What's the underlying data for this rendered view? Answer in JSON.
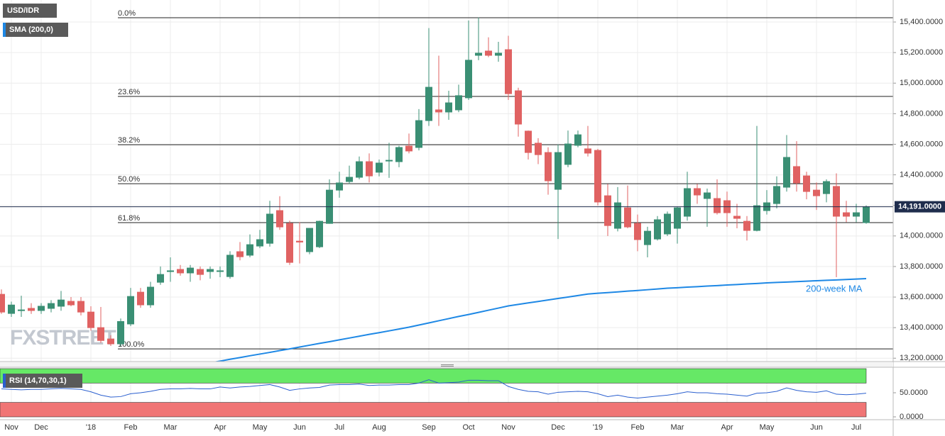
{
  "chart_data": [
    {
      "type": "candlestick",
      "title": "USD/IDR",
      "watermark": "FXSTREET",
      "up_color": "#3a8f74",
      "down_color": "#e06262",
      "categories": [
        null,
        "Nov",
        null,
        null,
        "Dec",
        null,
        null,
        null,
        null,
        "'18",
        null,
        null,
        null,
        "Feb",
        null,
        null,
        null,
        "Mar",
        null,
        null,
        null,
        null,
        "Apr",
        null,
        null,
        null,
        "May",
        null,
        null,
        null,
        "Jun",
        null,
        null,
        null,
        "Jul",
        null,
        null,
        null,
        "Aug",
        null,
        null,
        null,
        null,
        "Sep",
        null,
        null,
        null,
        "Oct",
        null,
        null,
        null,
        "Nov",
        null,
        null,
        null,
        null,
        "Dec",
        null,
        null,
        null,
        "'19",
        null,
        null,
        null,
        "Feb",
        null,
        null,
        null,
        "Mar",
        null,
        null,
        null,
        null,
        "Apr",
        null,
        null,
        null,
        "May",
        null,
        null,
        null,
        null,
        "Jun",
        null,
        null,
        null,
        "Jul",
        null
      ],
      "open": [
        13618,
        13493,
        13516,
        13526,
        13512,
        13526,
        13540,
        13572,
        13572,
        13502,
        13400,
        13326,
        13294,
        13424,
        13632,
        13549,
        13697,
        13767,
        13781,
        13758,
        13781,
        13767,
        13772,
        13734,
        13897,
        13874,
        13934,
        13952,
        14166,
        14082,
        13966,
        13897,
        13929,
        14082,
        14300,
        14356,
        14384,
        14486,
        14417,
        14495,
        14486,
        14588,
        14579,
        14755,
        14825,
        14811,
        14825,
        14904,
        15182,
        15210,
        15182,
        15219,
        14950,
        14686,
        14607,
        14546,
        14305,
        14468,
        14593,
        14570,
        14560,
        14263,
        14050,
        14184,
        14082,
        13943,
        13980,
        14013,
        14050,
        14129,
        14310,
        14245,
        14245,
        14231,
        14129,
        14096,
        14036,
        14166,
        14212,
        14319,
        14454,
        14393,
        14300,
        14277,
        14324,
        14152,
        14129,
        14087
      ],
      "high": [
        13650,
        13570,
        13609,
        13560,
        13560,
        13580,
        13640,
        13600,
        13600,
        13540,
        13535,
        13350,
        13460,
        13660,
        13660,
        13700,
        13800,
        13860,
        13810,
        13810,
        13800,
        13800,
        13800,
        13900,
        13960,
        14010,
        14040,
        14230,
        14260,
        14100,
        14090,
        14050,
        14100,
        14370,
        14420,
        14460,
        14520,
        14540,
        14500,
        14610,
        14590,
        14670,
        14830,
        15360,
        15180,
        14950,
        14990,
        15410,
        15430,
        15300,
        15270,
        15310,
        14970,
        14690,
        14640,
        14580,
        14600,
        14690,
        14690,
        14720,
        14570,
        14340,
        14320,
        14330,
        14140,
        14060,
        14130,
        14160,
        14190,
        14420,
        14340,
        14310,
        14370,
        14290,
        14210,
        14130,
        14720,
        14300,
        14390,
        14660,
        14620,
        14420,
        14350,
        14370,
        14410,
        14230,
        14210,
        14200
      ],
      "low": [
        13490,
        13470,
        13470,
        13490,
        13490,
        13500,
        13510,
        13540,
        13480,
        13380,
        13300,
        13280,
        13280,
        13410,
        13530,
        13530,
        13680,
        13700,
        13740,
        13700,
        13710,
        13720,
        13730,
        13720,
        13840,
        13860,
        13920,
        13930,
        14040,
        13810,
        13820,
        13880,
        13920,
        14080,
        14250,
        14340,
        14370,
        14350,
        14390,
        14380,
        14450,
        14540,
        14560,
        14720,
        14720,
        14760,
        14810,
        14890,
        15150,
        15170,
        15140,
        14890,
        14650,
        14500,
        14470,
        14270,
        13980,
        14450,
        14580,
        14520,
        14200,
        14000,
        14030,
        14050,
        13900,
        13860,
        13970,
        14000,
        13950,
        14100,
        14210,
        14060,
        14140,
        14060,
        14050,
        13970,
        14030,
        14140,
        14180,
        14290,
        14290,
        14240,
        14170,
        14220,
        13730,
        14090,
        14090,
        14080
      ],
      "close": [
        13502,
        13548,
        13516,
        13512,
        13540,
        13558,
        13581,
        13549,
        13502,
        13400,
        13316,
        13294,
        13440,
        13604,
        13549,
        13665,
        13748,
        13772,
        13758,
        13790,
        13748,
        13781,
        13772,
        13874,
        13864,
        13943,
        13976,
        14143,
        14059,
        13827,
        13960,
        14050,
        14096,
        14300,
        14347,
        14384,
        14486,
        14393,
        14477,
        14495,
        14579,
        14556,
        14755,
        14973,
        14811,
        14871,
        14918,
        15150,
        15196,
        15182,
        15196,
        14931,
        14732,
        14546,
        14532,
        14361,
        14546,
        14602,
        14662,
        14542,
        14222,
        14068,
        14217,
        14059,
        13976,
        14031,
        14106,
        14143,
        14184,
        14310,
        14268,
        14282,
        14152,
        14152,
        14115,
        14036,
        14198,
        14217,
        14324,
        14514,
        14347,
        14291,
        14263,
        14356,
        14129,
        14129,
        14152,
        14191
      ],
      "overlays": [
        {
          "name": "SMA (200,0)",
          "color": "#1e88e5",
          "values": [
            null,
            null,
            null,
            null,
            null,
            null,
            null,
            null,
            null,
            null,
            null,
            null,
            null,
            null,
            null,
            null,
            null,
            null,
            null,
            null,
            null,
            13170,
            13181,
            13193,
            13204,
            13216,
            13227,
            13238,
            13250,
            13261,
            13273,
            13285,
            13297,
            13308,
            13320,
            13332,
            13344,
            13356,
            13367,
            13379,
            13391,
            13403,
            13417,
            13431,
            13445,
            13459,
            13473,
            13486,
            13500,
            13514,
            13528,
            13542,
            13552,
            13562,
            13571,
            13581,
            13591,
            13600,
            13610,
            13620,
            13625,
            13629,
            13634,
            13639,
            13643,
            13648,
            13653,
            13658,
            13661,
            13665,
            13668,
            13672,
            13675,
            13679,
            13682,
            13686,
            13689,
            13693,
            13696,
            13698,
            13701,
            13704,
            13707,
            13710,
            13712,
            13715,
            13718,
            13721
          ]
        }
      ],
      "annotations": [
        "200-week MA"
      ],
      "fib_levels": [
        {
          "value": 15428,
          "label": "0.0%"
        },
        {
          "value": 14913,
          "label": "23.6%"
        },
        {
          "value": 14597,
          "label": "38.2%"
        },
        {
          "value": 14342,
          "label": "50.0%"
        },
        {
          "value": 14087,
          "label": "61.8%"
        },
        {
          "value": 13261,
          "label": "100.0%"
        }
      ],
      "last_price": {
        "value": 14191,
        "label": "14,191.0000"
      },
      "ylim": [
        13178,
        15544
      ],
      "yticks": [
        {
          "value": 15400,
          "label": "15,400.0000"
        },
        {
          "value": 15200,
          "label": "15,200.0000"
        },
        {
          "value": 15000,
          "label": "15,000.0000"
        },
        {
          "value": 14800,
          "label": "14,800.0000"
        },
        {
          "value": 14600,
          "label": "14,600.0000"
        },
        {
          "value": 14400,
          "label": "14,400.0000"
        },
        {
          "value": 14200,
          "label": "14,200.0000"
        },
        {
          "value": 14000,
          "label": "14,000.0000"
        },
        {
          "value": 13800,
          "label": "13,800.0000"
        },
        {
          "value": 13600,
          "label": "13,600.0000"
        },
        {
          "value": 13400,
          "label": "13,400.0000"
        },
        {
          "value": 13200,
          "label": "13,200.0000"
        }
      ],
      "grid": true
    },
    {
      "type": "line",
      "title": "RSI (14,70,30,1)",
      "color": "#2a5fcf",
      "bands": [
        {
          "from": 70,
          "to": 100,
          "color": "#66e866"
        },
        {
          "from": 0,
          "to": 30,
          "color": "#f07575"
        }
      ],
      "values": [
        58,
        57,
        56,
        57,
        57,
        58,
        59,
        58,
        57,
        52,
        45,
        41,
        42,
        48,
        50,
        53,
        57,
        58,
        58,
        59,
        58,
        58,
        62,
        60,
        62,
        63,
        65,
        67,
        62,
        55,
        58,
        60,
        61,
        66,
        67,
        67,
        68,
        65,
        66,
        66,
        67,
        67,
        70,
        77,
        70,
        71,
        72,
        76,
        76,
        75,
        75,
        63,
        57,
        53,
        52,
        47,
        51,
        52,
        53,
        52,
        48,
        42,
        45,
        41,
        39,
        41,
        43,
        45,
        48,
        52,
        50,
        50,
        48,
        47,
        45,
        43,
        49,
        50,
        53,
        60,
        55,
        52,
        51,
        54,
        47,
        46,
        47,
        49
      ],
      "ylim": [
        0,
        100
      ],
      "yticks": [
        {
          "value": 50,
          "label": "50.0000"
        },
        {
          "value": 0,
          "label": "0.0000"
        }
      ]
    }
  ]
}
